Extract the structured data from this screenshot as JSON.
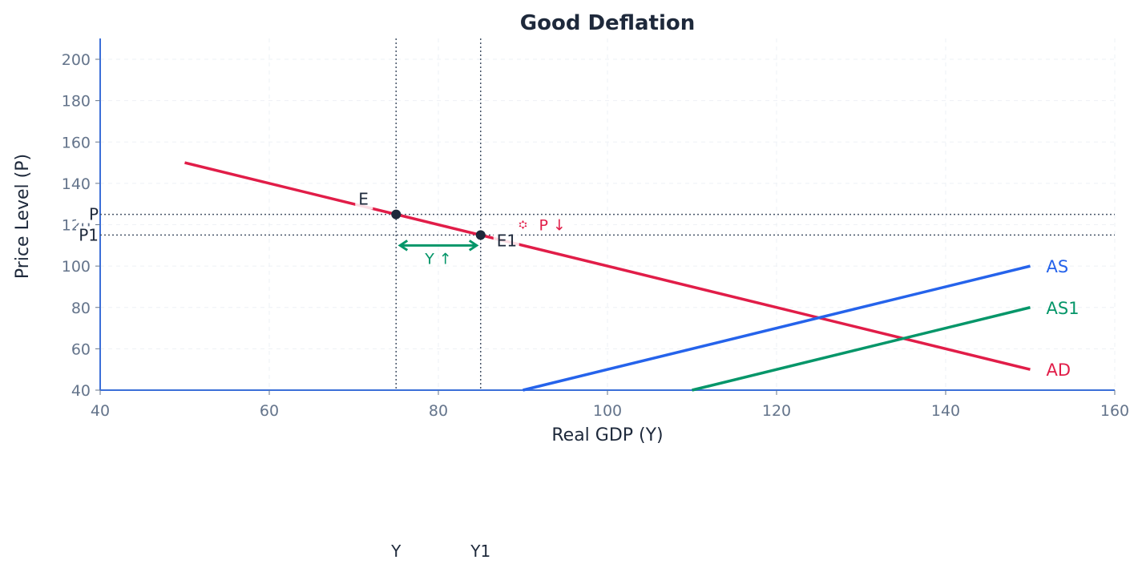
{
  "chart_data": {
    "type": "line",
    "title": "Good Deflation",
    "xlabel": "Real GDP (Y)",
    "ylabel": "Price Level (P)",
    "xlim": [
      40,
      160
    ],
    "ylim": [
      40,
      210
    ],
    "xticks": [
      40,
      60,
      80,
      100,
      120,
      140,
      160
    ],
    "yticks": [
      40,
      60,
      80,
      100,
      120,
      140,
      160,
      180,
      200
    ],
    "grid": true,
    "series": [
      {
        "name": "AD",
        "color": "#e11d48",
        "x": [
          50,
          150
        ],
        "y": [
          150,
          50
        ]
      },
      {
        "name": "AS",
        "color": "#2563eb",
        "x": [
          90,
          150
        ],
        "y": [
          40,
          100
        ]
      },
      {
        "name": "AS1",
        "color": "#059669",
        "x": [
          110,
          150
        ],
        "y": [
          40,
          80
        ]
      }
    ],
    "points": [
      {
        "label": "E",
        "x": 75,
        "y": 125
      },
      {
        "label": "E1",
        "x": 85,
        "y": 115
      }
    ],
    "guide_labels": {
      "p": "P",
      "p1": "P1",
      "y": "Y",
      "y1": "Y1"
    },
    "annotations": [
      {
        "text": "Y ↑",
        "color": "#059669",
        "from_x": 75,
        "to_x": 85,
        "y": 110
      },
      {
        "text": "P ↓",
        "color": "#e11d48",
        "x": 90,
        "from_y": 121,
        "to_y": 119
      }
    ],
    "colors": {
      "axis": "#3b6fd8",
      "tick": "#64748b",
      "text": "#1e293b",
      "guide": "#475569",
      "point": "#1e293b"
    }
  }
}
